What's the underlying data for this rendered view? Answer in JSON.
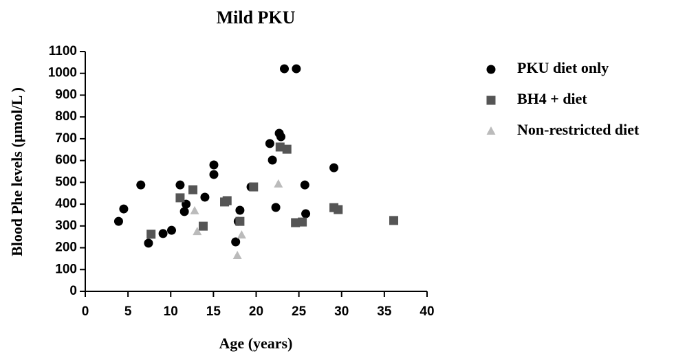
{
  "chart_data": {
    "type": "scatter",
    "title": "Mild PKU",
    "x_label": "Age (years)",
    "y_label": "Blood Phe levels (μmol/L )",
    "xlim": [
      0,
      40
    ],
    "xticks": [
      0,
      5,
      10,
      15,
      20,
      25,
      30,
      35,
      40
    ],
    "ylim": [
      0,
      1100
    ],
    "yticks": [
      0,
      100,
      200,
      300,
      400,
      500,
      600,
      700,
      800,
      900,
      1000,
      1100
    ],
    "series": [
      {
        "name": "PKU diet only",
        "color": "#000000",
        "marker": "circle",
        "x": [
          3.9,
          4.5,
          6.5,
          7.4,
          9.1,
          10.1,
          11.1,
          11.6,
          11.8,
          14.0,
          15.05,
          15.05,
          17.6,
          17.9,
          18.1,
          19.4,
          21.6,
          21.9,
          22.3,
          22.7,
          22.9,
          23.3,
          24.7,
          25.7,
          25.8,
          29.1
        ],
        "values": [
          321,
          378,
          488,
          221,
          265,
          280,
          488,
          366,
          400,
          432,
          580,
          536,
          227,
          321,
          372,
          479,
          678,
          602,
          385,
          725,
          709,
          1021,
          1021,
          488,
          356,
          567
        ]
      },
      {
        "name": "BH4 + diet",
        "color": "#555555",
        "marker": "square",
        "x": [
          7.7,
          11.1,
          12.6,
          13.8,
          16.3,
          16.6,
          18.1,
          19.7,
          22.8,
          23.6,
          24.6,
          25.4,
          29.1,
          29.6,
          36.1
        ],
        "values": [
          262,
          429,
          466,
          299,
          410,
          416,
          321,
          479,
          662,
          652,
          315,
          318,
          384,
          375,
          325
        ]
      },
      {
        "name": "Non-restricted diet",
        "color": "#bbbbbb",
        "marker": "triangle",
        "x": [
          12.8,
          13.1,
          18.3,
          17.8,
          22.6
        ],
        "values": [
          369,
          274,
          258,
          164,
          492
        ]
      }
    ]
  }
}
